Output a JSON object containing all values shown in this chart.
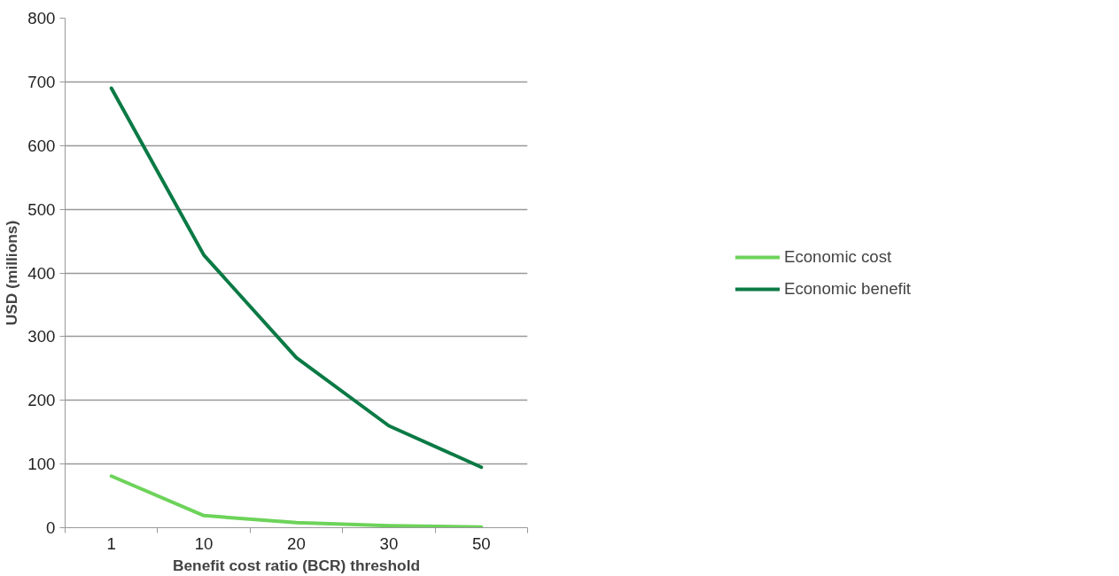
{
  "chart_data": {
    "type": "line",
    "xlabel": "Benefit cost ratio (BCR) threshold",
    "ylabel": "USD (millions)",
    "categories": [
      "1",
      "10",
      "20",
      "30",
      "50"
    ],
    "series": [
      {
        "name": "Economic cost",
        "color": "#6dd35a",
        "values": [
          81,
          19,
          8,
          3,
          1
        ]
      },
      {
        "name": "Economic benefit",
        "color": "#0b7a45",
        "values": [
          690,
          428,
          267,
          160,
          95
        ]
      }
    ],
    "ylim": [
      0,
      800
    ],
    "yticks": [
      0,
      100,
      200,
      300,
      400,
      500,
      600,
      700,
      800
    ],
    "grid": "y",
    "legend": "right",
    "marker": "none",
    "line_style": "solid"
  }
}
